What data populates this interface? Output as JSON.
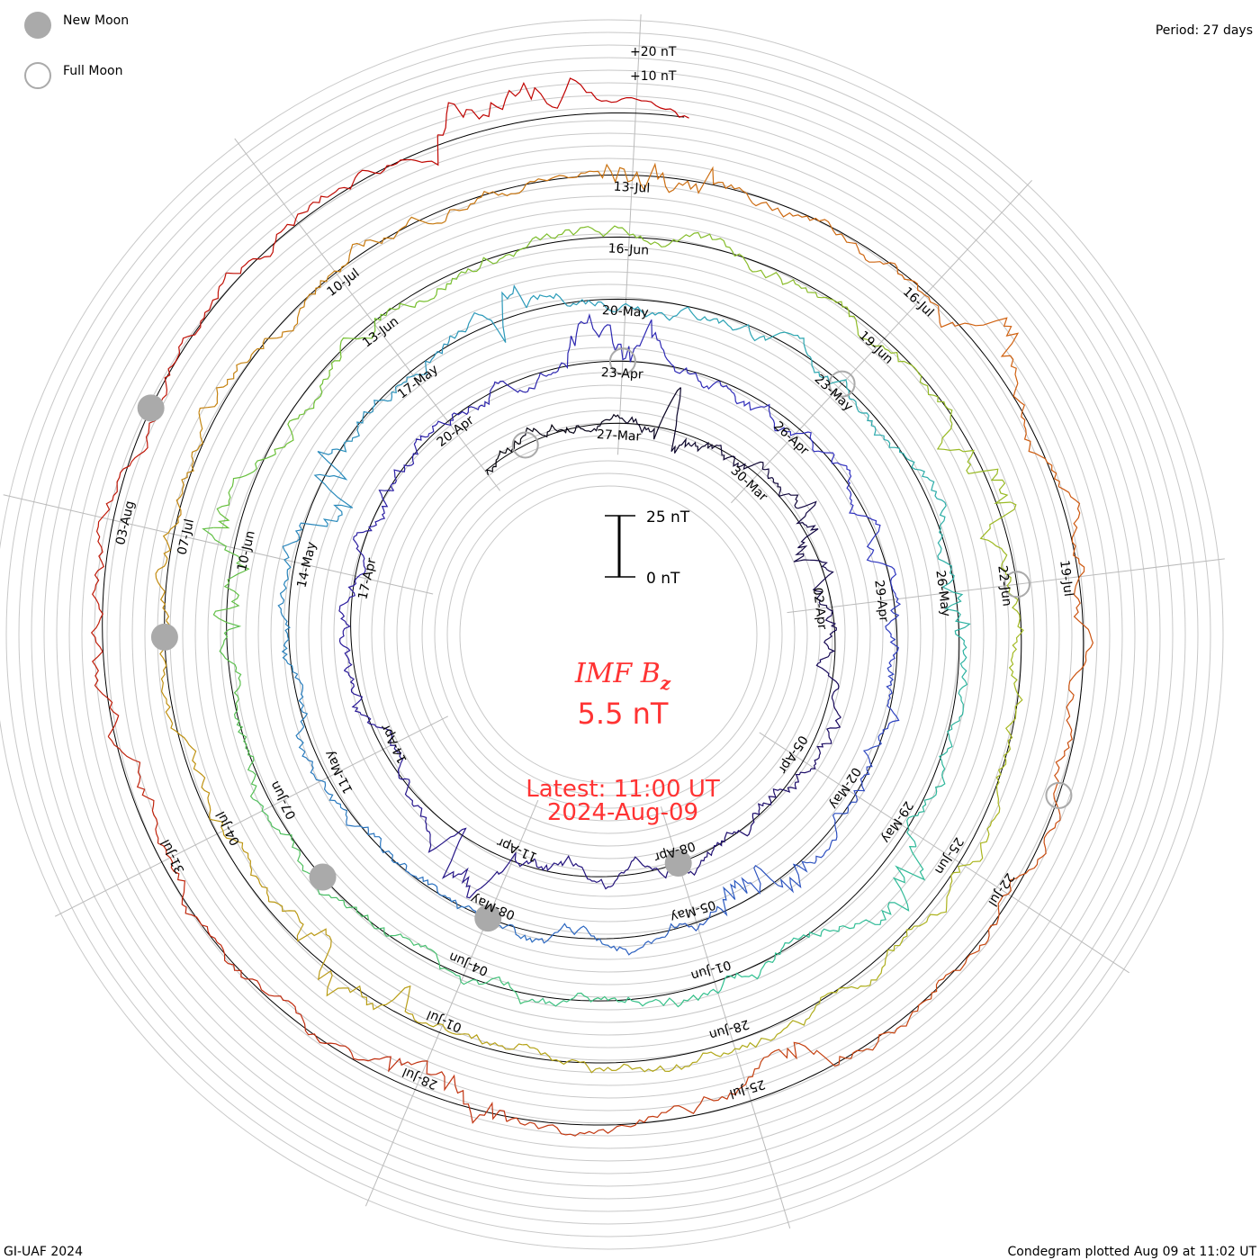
{
  "legend": {
    "new_moon": "New Moon",
    "full_moon": "Full Moon",
    "new_moon_color": "#aaaaaa"
  },
  "period": "Period: 27 days",
  "footer_left": "GI-UAF 2024",
  "footer_right": "Condegram plotted Aug 09 at 11:02 UT",
  "center": {
    "title_main": "IMF B",
    "title_sub": "z",
    "value": "5.5 nT",
    "latest": "Latest: 11:00 UT",
    "date": "2024-Aug-09",
    "scale_top": "25 nT",
    "scale_bottom": "0 nT",
    "color": "#ff3333"
  },
  "chart_data": {
    "type": "line",
    "subtype": "spiral condegram",
    "title": "IMF Bz",
    "period_days": 27,
    "start_day_offset": -3,
    "end_day_offset": 135.46,
    "ring_labels": [
      "+20 nT",
      "+10 nT"
    ],
    "date_labels": [
      "27-Mar",
      "30-Mar",
      "02-Apr",
      "05-Apr",
      "08-Apr",
      "11-Apr",
      "14-Apr",
      "17-Apr",
      "20-Apr",
      "23-Apr",
      "26-Apr",
      "29-Apr",
      "02-May",
      "05-May",
      "08-May",
      "11-May",
      "14-May",
      "17-May",
      "20-May",
      "23-May",
      "26-May",
      "29-May",
      "01-Jun",
      "04-Jun",
      "07-Jun",
      "10-Jun",
      "13-Jun",
      "16-Jun",
      "19-Jun",
      "22-Jun",
      "25-Jun",
      "28-Jun",
      "01-Jul",
      "04-Jul",
      "07-Jul",
      "10-Jul",
      "13-Jul",
      "16-Jul",
      "19-Jul",
      "22-Jul",
      "25-Jul",
      "28-Jul",
      "31-Jul",
      "03-Aug"
    ],
    "label_step_days": 3,
    "new_moon_days": [
      12,
      42,
      71,
      101,
      130
    ],
    "full_moon_days": [
      -2,
      27,
      57,
      87,
      116
    ],
    "palette": [
      "#000000",
      "#1a0a60",
      "#2a1a9a",
      "#3030c0",
      "#2a70c0",
      "#2aa0b8",
      "#30c090",
      "#70c030",
      "#a8b820",
      "#c09010",
      "#d06010",
      "#c03010",
      "#c00000"
    ]
  }
}
